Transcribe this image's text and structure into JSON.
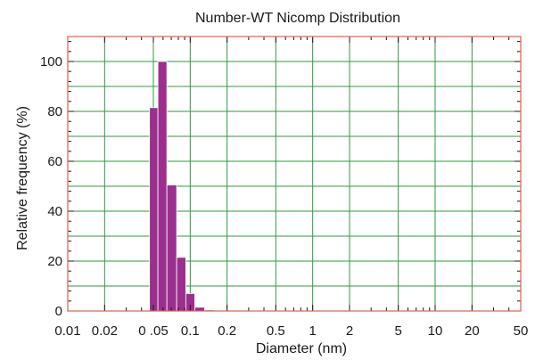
{
  "chart_data": {
    "type": "bar",
    "title": "Number-WT Nicomp Distribution",
    "xlabel": "Diameter (nm)",
    "ylabel": "Relative frequency (%)",
    "x_scale": "log",
    "xlim": [
      0.01,
      50
    ],
    "ylim": [
      0,
      110
    ],
    "x_ticks": [
      {
        "value": 0.01,
        "label": "0.01"
      },
      {
        "value": 0.02,
        "label": "0.02"
      },
      {
        "value": 0.05,
        "label": "0 .05"
      },
      {
        "value": 0.1,
        "label": "0.1"
      },
      {
        "value": 0.2,
        "label": "0.2"
      },
      {
        "value": 0.5,
        "label": "0.5"
      },
      {
        "value": 1,
        "label": "1"
      },
      {
        "value": 2,
        "label": "2"
      },
      {
        "value": 5,
        "label": "5"
      },
      {
        "value": 10,
        "label": "10"
      },
      {
        "value": 20,
        "label": "20"
      },
      {
        "value": 50,
        "label": "50"
      }
    ],
    "y_ticks": [
      {
        "value": 0,
        "label": "0"
      },
      {
        "value": 20,
        "label": "20"
      },
      {
        "value": 40,
        "label": "40"
      },
      {
        "value": 60,
        "label": "60"
      },
      {
        "value": 80,
        "label": "80"
      },
      {
        "value": 100,
        "label": "100"
      }
    ],
    "bars": [
      {
        "x0": 0.0465,
        "x1": 0.0545,
        "value": 81.5
      },
      {
        "x0": 0.0545,
        "x1": 0.0645,
        "value": 100
      },
      {
        "x0": 0.0645,
        "x1": 0.0775,
        "value": 50.5
      },
      {
        "x0": 0.0775,
        "x1": 0.092,
        "value": 21.5
      },
      {
        "x0": 0.092,
        "x1": 0.109,
        "value": 7
      },
      {
        "x0": 0.109,
        "x1": 0.131,
        "value": 1.5
      },
      {
        "x0": 0.131,
        "x1": 0.158,
        "value": 0.4
      },
      {
        "x0": 0.158,
        "x1": 0.19,
        "value": 0.2
      }
    ],
    "grid": true,
    "colors": {
      "bar": "#9b2f8e",
      "grid": "#2e9a3c",
      "frame": "#e0604a",
      "text": "#1a1a1a"
    }
  }
}
